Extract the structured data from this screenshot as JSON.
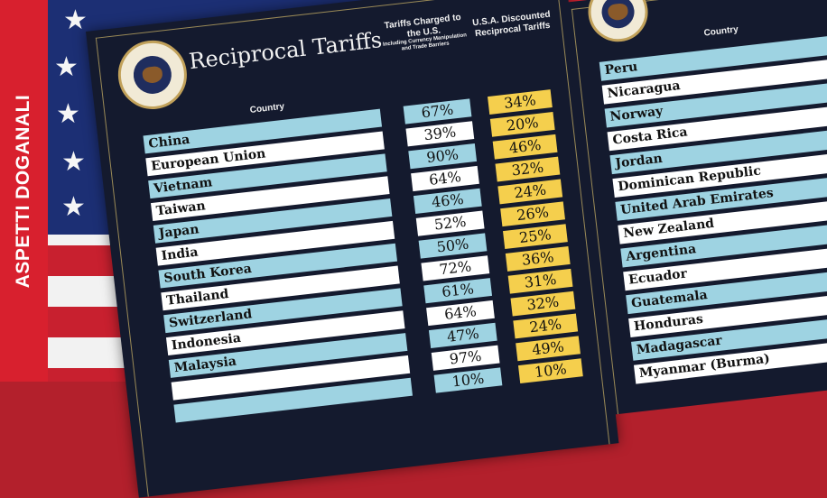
{
  "banner": {
    "text": "ASPETTI DOGANALI"
  },
  "board_left": {
    "title": "Reciprocal Tariffs",
    "header_country": "Country",
    "header_charged": "Tariffs Charged to the U.S.",
    "header_charged_sub": "Including Currency Manipulation and Trade Barriers",
    "header_discounted": "U.S.A. Discounted Reciprocal Tariffs",
    "rows": [
      {
        "country": "China",
        "charged": "67%",
        "discounted": "34%"
      },
      {
        "country": "European Union",
        "charged": "39%",
        "discounted": "20%"
      },
      {
        "country": "Vietnam",
        "charged": "90%",
        "discounted": "46%"
      },
      {
        "country": "Taiwan",
        "charged": "64%",
        "discounted": "32%"
      },
      {
        "country": "Japan",
        "charged": "46%",
        "discounted": "24%"
      },
      {
        "country": "India",
        "charged": "52%",
        "discounted": "26%"
      },
      {
        "country": "South Korea",
        "charged": "50%",
        "discounted": "25%"
      },
      {
        "country": "Thailand",
        "charged": "72%",
        "discounted": "36%"
      },
      {
        "country": "Switzerland",
        "charged": "61%",
        "discounted": "31%"
      },
      {
        "country": "Indonesia",
        "charged": "64%",
        "discounted": "32%"
      },
      {
        "country": "Malaysia",
        "charged": "47%",
        "discounted": "24%"
      },
      {
        "country": "",
        "charged": "97%",
        "discounted": "49%"
      },
      {
        "country": "",
        "charged": "10%",
        "discounted": "10%"
      }
    ]
  },
  "board_right": {
    "header_country": "Country",
    "rows": [
      {
        "country": "Peru"
      },
      {
        "country": "Nicaragua"
      },
      {
        "country": "Norway"
      },
      {
        "country": "Costa Rica"
      },
      {
        "country": "Jordan"
      },
      {
        "country": "Dominican Republic"
      },
      {
        "country": "United Arab Emirates"
      },
      {
        "country": "New Zealand"
      },
      {
        "country": "Argentina"
      },
      {
        "country": "Ecuador"
      },
      {
        "country": "Guatemala"
      },
      {
        "country": "Honduras"
      },
      {
        "country": "Madagascar"
      },
      {
        "country": "Myanmar (Burma)"
      }
    ]
  },
  "colors": {
    "band": "#d8202e",
    "board": "#141a2e",
    "row_blue": "#9ed3e2",
    "discount_yellow": "#f5cf4d"
  }
}
